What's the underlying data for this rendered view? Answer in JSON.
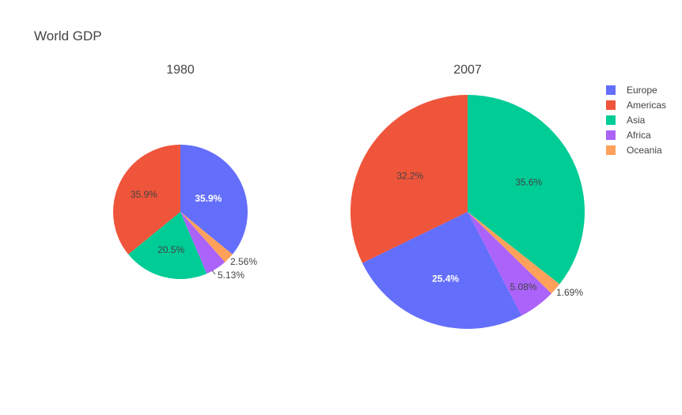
{
  "chart_data": {
    "type": "pie",
    "title": "World GDP",
    "categories": [
      "Europe",
      "Americas",
      "Asia",
      "Africa",
      "Oceania"
    ],
    "colors": [
      "#636efa",
      "#ef553b",
      "#00cc96",
      "#ab63fa",
      "#ffa15a"
    ],
    "legend": {
      "position": "top-right"
    },
    "pies": [
      {
        "name": "1980",
        "segments": [
          {
            "category": "Europe",
            "value": 35.9,
            "label": "35.9%"
          },
          {
            "category": "Oceania",
            "value": 2.56,
            "label": "2.56%"
          },
          {
            "category": "Africa",
            "value": 5.13,
            "label": "5.13%"
          },
          {
            "category": "Asia",
            "value": 20.5,
            "label": "20.5%"
          },
          {
            "category": "Americas",
            "value": 35.9,
            "label": "35.9%"
          }
        ]
      },
      {
        "name": "2007",
        "segments": [
          {
            "category": "Asia",
            "value": 35.6,
            "label": "35.6%"
          },
          {
            "category": "Oceania",
            "value": 1.69,
            "label": "1.69%"
          },
          {
            "category": "Africa",
            "value": 5.08,
            "label": "5.08%"
          },
          {
            "category": "Europe",
            "value": 25.4,
            "label": "25.4%"
          },
          {
            "category": "Americas",
            "value": 32.2,
            "label": "32.2%"
          }
        ]
      }
    ]
  }
}
